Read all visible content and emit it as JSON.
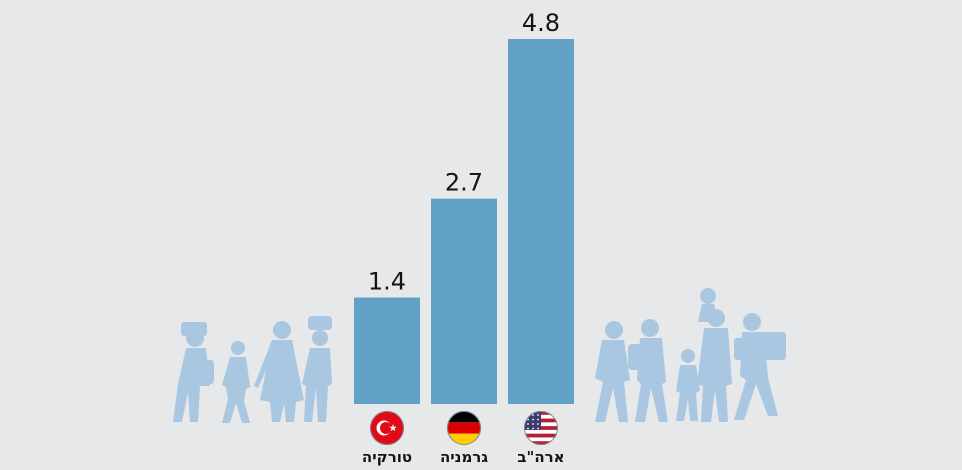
{
  "chart_data": {
    "type": "bar",
    "categories": [
      "טורקיה",
      "גרמניה",
      "ארה\"ב"
    ],
    "values": [
      1.4,
      2.7,
      4.8
    ],
    "value_labels": [
      "1.4",
      "2.7",
      "4.8"
    ],
    "flags": [
      "turkey-flag-icon",
      "germany-flag-icon",
      "usa-flag-icon"
    ],
    "ylim": [
      0,
      4.8
    ],
    "grid": false,
    "title": "",
    "xlabel": "",
    "ylabel": ""
  },
  "colors": {
    "background": "#e7e8ea",
    "bar": "#62a1c6",
    "figures": "#a9c7e1",
    "text": "#141414"
  },
  "decorations": {
    "left_icon": "refugees-walking-left-icon",
    "right_icon": "refugees-walking-right-icon"
  }
}
